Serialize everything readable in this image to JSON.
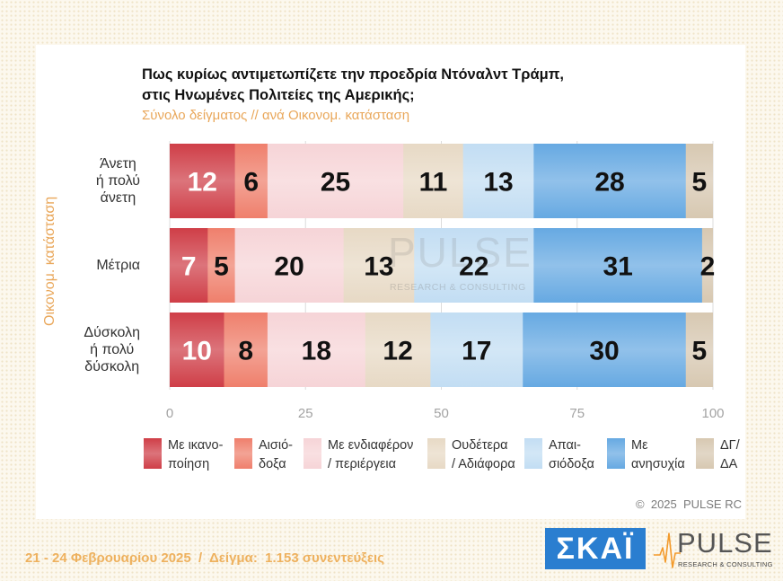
{
  "chart_data": {
    "type": "bar",
    "orientation": "horizontal",
    "stacked": true,
    "title": "Πως κυρίως αντιμετωπίζετε την προεδρία Ντόναλντ Τράμπ,\nστις Ηνωμένες Πολιτείες της Αμερικής;",
    "subtitle": "Σύνολο δείγματος // ανά Οικονομ. κατάσταση",
    "ylabel": "Οικονομ. κατάσταση",
    "categories": [
      "Άνετη\nή πολύ\nάνετη",
      "Μέτρια",
      "Δύσκολη\nή πολύ\nδύσκολη"
    ],
    "xlim": [
      0,
      100
    ],
    "xticks": [
      0,
      25,
      50,
      75,
      100
    ],
    "grid": true,
    "legend_position": "bottom",
    "series": [
      {
        "name": "Με ικανο-\nποίηση",
        "values": [
          12,
          7,
          10
        ],
        "color": "#cf3e47",
        "label_color": "#ffffff"
      },
      {
        "name": "Αισιό-\nδοξα",
        "values": [
          6,
          5,
          8
        ],
        "color": "#ef7f6c",
        "label_color": "#111111"
      },
      {
        "name": "Με ενδιαφέρον\n/ περιέργεια",
        "values": [
          25,
          20,
          18
        ],
        "color": "#f6d4d7",
        "label_color": "#111111"
      },
      {
        "name": "Ουδέτερα\n/ Αδιάφορα",
        "values": [
          11,
          13,
          12
        ],
        "color": "#e7d9c5",
        "label_color": "#111111"
      },
      {
        "name": "Απαι-\nσιόδοξα",
        "values": [
          13,
          22,
          17
        ],
        "color": "#c2ddf3",
        "label_color": "#111111"
      },
      {
        "name": "Με\nανησυχία",
        "values": [
          28,
          31,
          30
        ],
        "color": "#66a9e2",
        "label_color": "#111111"
      },
      {
        "name": "ΔΓ/\nΔΑ",
        "values": [
          5,
          2,
          5
        ],
        "color": "#d7c8b1",
        "label_color": "#111111"
      }
    ]
  },
  "watermark": {
    "brand": "PULSE",
    "tagline": "RESEARCH & CONSULTING"
  },
  "copyright": "©  2025  PULSE RC",
  "footer": "21 - 24 Φεβρουαρίου 2025  /  Δείγμα:  1.153 συνεντεύξεις",
  "logos": {
    "skai": "ΣΚΑΪ",
    "pulse": "PULSE",
    "pulse_tagline": "RESEARCH & CONSULTING",
    "skai_color": "#2a7ed0",
    "pulse_accent": "#f39a2b"
  }
}
